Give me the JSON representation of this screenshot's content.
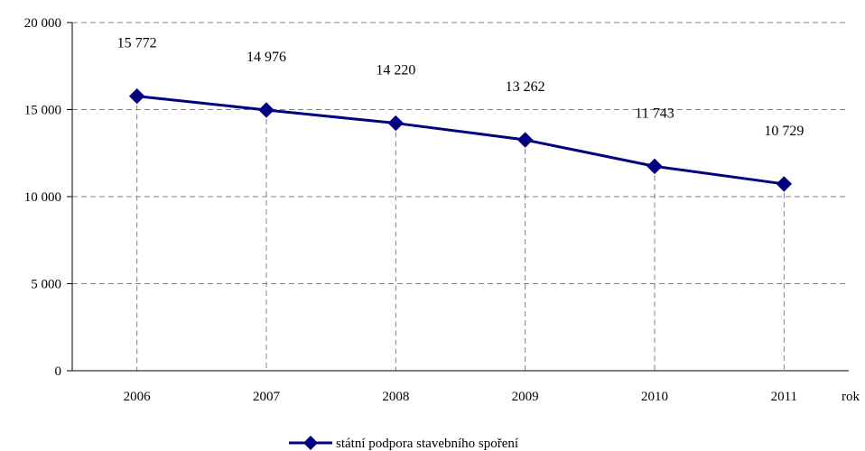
{
  "chart_data": {
    "type": "line",
    "title": "",
    "xlabel": "rok",
    "ylabel": "",
    "categories": [
      "2006",
      "2007",
      "2008",
      "2009",
      "2010",
      "2011"
    ],
    "series": [
      {
        "name": "státní podpora stavebního spoření",
        "values": [
          15772,
          14976,
          14220,
          13262,
          11743,
          10729
        ],
        "data_labels": [
          "15 772",
          "14 976",
          "14 220",
          "13 262",
          "11 743",
          "10 729"
        ],
        "color": "#000080",
        "marker": "diamond"
      }
    ],
    "ylim": [
      0,
      20000
    ],
    "yticks": [
      0,
      5000,
      10000,
      15000,
      20000
    ],
    "ytick_labels": [
      "0",
      "5 000",
      "10 000",
      "15 000",
      "20 000"
    ],
    "grid": true,
    "grid_style": "dashed",
    "legend_position": "bottom"
  }
}
